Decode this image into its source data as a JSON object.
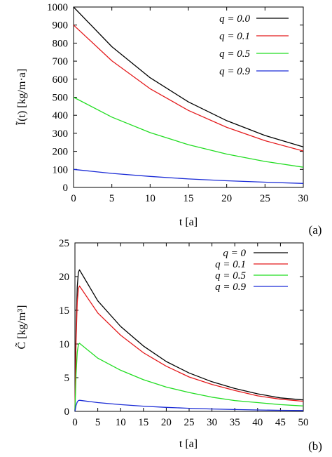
{
  "chart_data": [
    {
      "panel_label": "(a)",
      "type": "line",
      "xlabel": "t [a]",
      "ylabel": "Ĩ(t) [kg/m·a]",
      "xlim": [
        0,
        30
      ],
      "ylim": [
        0,
        1000
      ],
      "x_ticks": [
        "0",
        "5",
        "10",
        "15",
        "20",
        "25",
        "30"
      ],
      "y_ticks": [
        "0",
        "100",
        "200",
        "300",
        "400",
        "500",
        "600",
        "700",
        "800",
        "900",
        "1000"
      ],
      "grid": false,
      "legend_position": "top-right",
      "x": [
        0,
        5,
        10,
        15,
        20,
        25,
        30
      ],
      "series": [
        {
          "name": "q = 0.0",
          "color": "#000000",
          "values": [
            1000,
            780,
            608,
            474,
            370,
            288,
            225
          ]
        },
        {
          "name": "q = 0.1",
          "color": "#e41a1c",
          "values": [
            900,
            702,
            547,
            427,
            333,
            259,
            202
          ]
        },
        {
          "name": "q = 0.5",
          "color": "#22dd22",
          "values": [
            500,
            390,
            304,
            237,
            185,
            144,
            112
          ]
        },
        {
          "name": "q = 0.9",
          "color": "#1a2bd6",
          "values": [
            100,
            78,
            61,
            47,
            37,
            29,
            22
          ]
        }
      ]
    },
    {
      "panel_label": "(b)",
      "type": "line",
      "xlabel": "t [a]",
      "ylabel": "C̃ [kg/m³]",
      "xlim": [
        0,
        50
      ],
      "ylim": [
        0,
        25
      ],
      "x_ticks": [
        "0",
        "5",
        "10",
        "15",
        "20",
        "25",
        "30",
        "35",
        "40",
        "45",
        "50"
      ],
      "y_ticks": [
        "0",
        "5",
        "10",
        "15",
        "20",
        "25"
      ],
      "grid": false,
      "legend_position": "top-right",
      "x": [
        0,
        0.25,
        0.5,
        0.75,
        1,
        5,
        10,
        15,
        20,
        25,
        30,
        35,
        40,
        45,
        50
      ],
      "series": [
        {
          "name": "q = 0",
          "color": "#000000",
          "values": [
            0,
            12,
            18.5,
            20.6,
            21.0,
            16.4,
            12.6,
            9.7,
            7.4,
            5.7,
            4.4,
            3.4,
            2.6,
            2.0,
            1.7
          ]
        },
        {
          "name": "q = 0.1",
          "color": "#e41a1c",
          "values": [
            0,
            10.5,
            16.2,
            18.2,
            18.6,
            14.6,
            11.3,
            8.7,
            6.7,
            5.1,
            4.0,
            3.1,
            2.3,
            1.8,
            1.5
          ]
        },
        {
          "name": "q = 0.5",
          "color": "#22dd22",
          "values": [
            0,
            5.5,
            8.8,
            9.9,
            10.1,
            7.9,
            6.1,
            4.7,
            3.6,
            2.8,
            2.1,
            1.6,
            1.3,
            1.0,
            0.8
          ]
        },
        {
          "name": "q = 0.9",
          "color": "#1a2bd6",
          "values": [
            0,
            0.9,
            1.4,
            1.6,
            1.65,
            1.3,
            1.0,
            0.77,
            0.59,
            0.46,
            0.35,
            0.27,
            0.21,
            0.16,
            0.13
          ]
        }
      ]
    }
  ]
}
